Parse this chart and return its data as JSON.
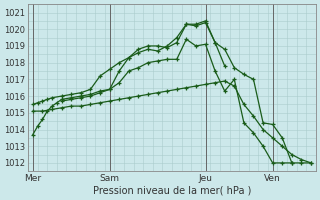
{
  "bg_color": "#cce8ea",
  "grid_color": "#aacccc",
  "line_color": "#1a5c1a",
  "xlabel": "Pression niveau de la mer( hPa )",
  "ylim": [
    1011.5,
    1021.5
  ],
  "yticks": [
    1012,
    1013,
    1014,
    1015,
    1016,
    1017,
    1018,
    1019,
    1020,
    1021
  ],
  "xtick_labels": [
    "Mer",
    "Sam",
    "Jeu",
    "Ven"
  ],
  "xtick_positions": [
    0,
    8,
    18,
    25
  ],
  "vline_positions": [
    0,
    8,
    18,
    25
  ],
  "xlim": [
    -0.5,
    29.5
  ],
  "lines": [
    {
      "x": [
        0,
        0.5,
        1,
        1.5,
        2,
        2.5,
        3,
        4,
        5,
        6,
        7,
        8,
        9,
        10,
        11,
        12,
        13,
        14,
        15,
        16,
        17,
        18,
        19,
        20
      ],
      "y": [
        1013.7,
        1014.2,
        1014.6,
        1015.1,
        1015.4,
        1015.6,
        1015.8,
        1015.9,
        1016.0,
        1016.1,
        1016.3,
        1016.4,
        1017.5,
        1018.3,
        1018.8,
        1019.0,
        1019.0,
        1018.9,
        1019.2,
        1020.3,
        1020.3,
        1020.5,
        1019.2,
        1017.8
      ]
    },
    {
      "x": [
        0,
        0.5,
        1,
        1.5,
        2,
        3,
        4,
        5,
        6,
        7,
        8,
        9,
        10,
        11,
        12,
        13,
        14,
        15,
        16,
        17,
        18,
        19,
        20,
        21,
        22,
        23,
        24,
        25,
        26,
        27
      ],
      "y": [
        1015.5,
        1015.6,
        1015.7,
        1015.8,
        1015.9,
        1016.0,
        1016.1,
        1016.2,
        1016.4,
        1017.2,
        1017.6,
        1018.0,
        1018.3,
        1018.6,
        1018.8,
        1018.7,
        1019.0,
        1019.5,
        1020.3,
        1020.2,
        1020.4,
        1019.2,
        1018.8,
        1017.7,
        1017.3,
        1017.0,
        1014.4,
        1014.3,
        1013.5,
        1012.0
      ]
    },
    {
      "x": [
        3,
        4,
        5,
        6,
        7,
        8,
        9,
        10,
        11,
        12,
        13,
        14,
        15,
        16,
        17,
        18,
        19,
        20,
        21,
        22,
        23,
        24,
        25,
        26,
        27,
        28,
        29
      ],
      "y": [
        1015.7,
        1015.8,
        1015.9,
        1016.0,
        1016.2,
        1016.4,
        1016.8,
        1017.5,
        1017.7,
        1018.0,
        1018.1,
        1018.2,
        1018.2,
        1019.4,
        1019.0,
        1019.1,
        1017.5,
        1016.3,
        1017.0,
        1014.4,
        1013.8,
        1013.0,
        1012.0,
        1012.0,
        1012.0,
        1012.0,
        1012.0
      ]
    },
    {
      "x": [
        0,
        1,
        2,
        3,
        4,
        5,
        6,
        7,
        8,
        9,
        10,
        11,
        12,
        13,
        14,
        15,
        16,
        17,
        18,
        19,
        20,
        21,
        22,
        23,
        24,
        25,
        26,
        27,
        28,
        29
      ],
      "y": [
        1015.1,
        1015.1,
        1015.2,
        1015.3,
        1015.4,
        1015.4,
        1015.5,
        1015.6,
        1015.7,
        1015.8,
        1015.9,
        1016.0,
        1016.1,
        1016.2,
        1016.3,
        1016.4,
        1016.5,
        1016.6,
        1016.7,
        1016.8,
        1016.9,
        1016.6,
        1015.5,
        1014.8,
        1014.0,
        1013.5,
        1013.0,
        1012.5,
        1012.2,
        1012.0
      ]
    }
  ]
}
